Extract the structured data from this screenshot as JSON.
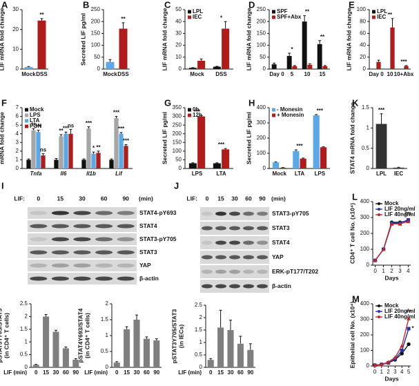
{
  "chart_data": [
    {
      "type": "bar",
      "letter": "A",
      "ylabel": "LIF mRNA fold change",
      "categories": [
        "Mock",
        "DSS"
      ],
      "values": [
        1,
        24.5
      ],
      "errors": [
        0.3,
        1
      ],
      "colors": [
        "#5aa9e6",
        "#b01c1c"
      ],
      "ylim": [
        0,
        30
      ],
      "yticks": [
        0,
        10,
        20,
        30
      ],
      "annotations": [
        {
          "text": "**",
          "category": "DSS"
        }
      ]
    },
    {
      "type": "bar",
      "letter": "B",
      "ylabel": "Secreted LIF pg/ml",
      "categories": [
        "Mock",
        "DSS"
      ],
      "values": [
        30,
        170
      ],
      "errors": [
        10,
        25
      ],
      "colors": [
        "#5aa9e6",
        "#b01c1c"
      ],
      "ylim": [
        0,
        250
      ],
      "yticks": [
        0,
        50,
        100,
        150,
        200,
        250
      ],
      "annotations": [
        {
          "text": "**",
          "category": "DSS"
        }
      ]
    },
    {
      "type": "bar",
      "letter": "C",
      "ylabel": "LIF mRNA fold change",
      "categories": [
        "Mock",
        "DSS"
      ],
      "series": [
        {
          "name": "LPL",
          "color": "#111111",
          "values": [
            1,
            2
          ],
          "errors": [
            0.2,
            0.3
          ]
        },
        {
          "name": "IEC",
          "color": "#b01c1c",
          "values": [
            7,
            34
          ],
          "errors": [
            1.5,
            6
          ]
        }
      ],
      "ylim": [
        0,
        50
      ],
      "yticks": [
        0,
        10,
        20,
        30,
        40,
        50
      ],
      "annotations": [
        {
          "text": "*",
          "category": "DSS"
        }
      ]
    },
    {
      "type": "bar",
      "letter": "D",
      "ylabel": "LIF mRNA fold change",
      "categories": [
        "Day 0",
        "5",
        "10",
        "15"
      ],
      "series": [
        {
          "name": "SPF",
          "color": "#111111",
          "values": [
            20,
            55,
            200,
            105
          ],
          "errors": [
            5,
            12,
            25,
            15
          ]
        },
        {
          "name": "SPF+Abx",
          "color": "#b01c1c",
          "values": [
            null,
            12,
            18,
            12
          ],
          "errors": [
            null,
            3,
            4,
            3
          ]
        }
      ],
      "ylim": [
        0,
        250
      ],
      "yticks": [
        0,
        50,
        100,
        150,
        200,
        250
      ],
      "annotations": [
        {
          "text": "*",
          "category": "5"
        },
        {
          "text": "**",
          "category": "10"
        },
        {
          "text": "**",
          "category": "15"
        }
      ]
    },
    {
      "type": "bar",
      "letter": "E",
      "ylabel": "LIF mRNA fold change",
      "categories": [
        "Day 0",
        "10",
        "10+Abx"
      ],
      "series": [
        {
          "name": "LPL",
          "color": "#111111",
          "values": [
            null,
            null,
            null
          ]
        },
        {
          "name": "IEC",
          "color": "#b01c1c",
          "values": [
            12,
            70,
            5
          ],
          "errors": [
            3,
            15,
            1
          ]
        }
      ],
      "ylim": [
        0,
        100
      ],
      "yticks": [
        0,
        20,
        40,
        60,
        80,
        100
      ],
      "annotations": [
        {
          "text": "**",
          "category": "10"
        },
        {
          "text": "***",
          "category": "10+Abx"
        }
      ]
    },
    {
      "type": "bar",
      "letter": "F",
      "ylabel": "mRNA fold change",
      "italic_categories": true,
      "categories": [
        "Tnfa",
        "Il6",
        "Il1b",
        "Lif"
      ],
      "series": [
        {
          "name": "Mock",
          "color": "#111111",
          "values": [
            1,
            1,
            1,
            1
          ],
          "errors": [
            0.1,
            0.15,
            0.1,
            0.1
          ]
        },
        {
          "name": "LPS",
          "color": "#a6a6a6",
          "values": [
            4.4,
            3.7,
            4.6,
            5.8
          ],
          "errors": [
            0.2,
            0.2,
            0.2,
            0.2
          ]
        },
        {
          "name": "LTA",
          "color": "#5aa9e6",
          "values": [
            4.2,
            4,
            1.7,
            4
          ],
          "errors": [
            0.2,
            0.2,
            0.2,
            0.15
          ]
        },
        {
          "name": "PGN",
          "color": "#b01c1c",
          "values": [
            1.5,
            4,
            1.8,
            2.6
          ],
          "errors": [
            0.2,
            0.5,
            0.2,
            0.15
          ]
        }
      ],
      "ylim": [
        0,
        7
      ],
      "yticks": [
        0,
        1,
        2,
        3,
        4,
        5,
        6,
        7
      ],
      "annotations": [
        {
          "text": "**",
          "category": "Tnfa",
          "series": "LPS"
        },
        {
          "text": "***",
          "category": "Tnfa",
          "series": "LTA"
        },
        {
          "text": "ns",
          "category": "Tnfa",
          "series": "PGN"
        },
        {
          "text": "**",
          "category": "Il6",
          "series": "LPS"
        },
        {
          "text": "***",
          "category": "Il6",
          "series": "LTA"
        },
        {
          "text": "ns",
          "category": "Il6",
          "series": "PGN"
        },
        {
          "text": "***",
          "category": "Il1b",
          "series": "LPS"
        },
        {
          "text": "*",
          "category": "Il1b",
          "series": "LTA"
        },
        {
          "text": "**",
          "category": "Il1b",
          "series": "PGN"
        },
        {
          "text": "***",
          "category": "Lif",
          "series": "LPS"
        },
        {
          "text": "***",
          "category": "Lif",
          "series": "LTA"
        },
        {
          "text": "***",
          "category": "Lif",
          "series": "PGN"
        }
      ]
    },
    {
      "type": "bar",
      "letter": "G",
      "ylabel": "Secreted LIF pg/ml",
      "categories": [
        "LPS",
        "LTA"
      ],
      "series": [
        {
          "name": "0h",
          "color": "#111111",
          "values": [
            30,
            30
          ],
          "errors": [
            3,
            3
          ]
        },
        {
          "name": "12h",
          "color": "#b01c1c",
          "values": [
            300,
            110
          ],
          "errors": [
            5,
            5
          ]
        }
      ],
      "ylim": [
        0,
        350
      ],
      "yticks": [
        0,
        50,
        100,
        150,
        200,
        250,
        300,
        350
      ],
      "annotations": [
        {
          "text": "***",
          "category": "LPS"
        },
        {
          "text": "***",
          "category": "LTA"
        }
      ]
    },
    {
      "type": "bar",
      "letter": "H",
      "ylabel": "Secreted LIF pg/ml",
      "categories": [
        "Mock",
        "LTA",
        "LPS"
      ],
      "series": [
        {
          "name": "- Monesin",
          "color": "#5aa9e6",
          "values": [
            40,
            115,
            350
          ],
          "errors": [
            4,
            8,
            5
          ]
        },
        {
          "name": "+ Monesin",
          "color": "#b01c1c",
          "values": [
            5,
            65,
            140
          ],
          "errors": [
            1,
            4,
            4
          ]
        }
      ],
      "ylim": [
        0,
        400
      ],
      "yticks": [
        0,
        100,
        200,
        300,
        400
      ],
      "annotations": [
        {
          "text": "***",
          "category": "LTA"
        },
        {
          "text": "***",
          "category": "LPS"
        }
      ]
    },
    {
      "type": "bar",
      "letter": "K",
      "ylabel": "STAT4 mRNA fold change",
      "categories": [
        "LPL",
        "IEC"
      ],
      "values": [
        1.1,
        0.02
      ],
      "errors": [
        0.25,
        0.01
      ],
      "colors": [
        "#333333",
        "#333333"
      ],
      "ylim": [
        0,
        1.5
      ],
      "yticks": [
        0,
        0.5,
        1,
        1.5
      ],
      "annotations": [
        {
          "text": "***",
          "category": "LPL"
        }
      ]
    },
    {
      "type": "line",
      "letter": "L",
      "ylabel": "CD4⁺ T cell No. (x10⁴)",
      "xlabel": "Days",
      "x": [
        0,
        1,
        2,
        3,
        4
      ],
      "series": [
        {
          "name": "Mock",
          "color": "#111111",
          "marker": "circle",
          "values": [
            30,
            100,
            270,
            270,
            280
          ]
        },
        {
          "name": "LIF 20ng/ml",
          "color": "#2233aa",
          "marker": "square",
          "values": [
            30,
            100,
            265,
            265,
            285
          ]
        },
        {
          "name": "LIF 40ng/ml",
          "color": "#c0282d",
          "marker": "triangle",
          "values": [
            30,
            100,
            260,
            260,
            275
          ]
        }
      ],
      "xlim": [
        -0.3,
        4.3
      ],
      "xticks": [
        0,
        1,
        2,
        3,
        4
      ],
      "ylim": [
        0,
        400
      ],
      "yticks": [
        0,
        100,
        200,
        300,
        400
      ],
      "annotations": [
        {
          "text": "ns",
          "x": 4,
          "series": "LIF 20ng/ml"
        }
      ]
    },
    {
      "type": "bar",
      "ylabel": [
        "pSTAT3Y705/STAT3",
        "(in CD4⁺ T cells)"
      ],
      "xlabel": "LIF (min)",
      "categories": [
        "0",
        "15",
        "30",
        "60",
        "90"
      ],
      "values": [
        0.1,
        2,
        1.4,
        0.75,
        0.3
      ],
      "errors": [
        0.02,
        0.08,
        0.06,
        0.05,
        0.04
      ],
      "colors": [
        "#7f7f7f",
        "#7f7f7f",
        "#7f7f7f",
        "#7f7f7f",
        "#7f7f7f"
      ],
      "ylim": [
        0,
        2.5
      ],
      "yticks": [
        0,
        0.5,
        1,
        1.5,
        2,
        2.5
      ]
    },
    {
      "type": "bar",
      "ylabel": [
        "pSTAT4Y693/STAT4",
        "(in CD4⁺ T cells)"
      ],
      "xlabel": "LIF (min)",
      "categories": [
        "0",
        "15",
        "30",
        "60",
        "90"
      ],
      "values": [
        0.15,
        1.2,
        1.5,
        0.9,
        0.85
      ],
      "errors": [
        0.03,
        0.08,
        0.15,
        0.06,
        0.05
      ],
      "colors": [
        "#7f7f7f",
        "#7f7f7f",
        "#7f7f7f",
        "#7f7f7f",
        "#7f7f7f"
      ],
      "ylim": [
        0,
        2
      ],
      "yticks": [
        0,
        0.5,
        1,
        1.5,
        2
      ]
    },
    {
      "type": "bar",
      "ylabel": [
        "pSTAT3Y705/STAT3",
        "(in IECs)"
      ],
      "xlabel": "LIF (min)",
      "categories": [
        "0",
        "15",
        "30",
        "60",
        "90"
      ],
      "values": [
        0.3,
        1.6,
        1.5,
        0.95,
        0.7
      ],
      "errors": [
        0.05,
        0.7,
        0.4,
        0.3,
        0.25
      ],
      "colors": [
        "#7f7f7f",
        "#7f7f7f",
        "#7f7f7f",
        "#7f7f7f",
        "#7f7f7f"
      ],
      "ylim": [
        0,
        2.5
      ],
      "yticks": [
        0,
        0.5,
        1,
        1.5,
        2,
        2.5
      ]
    },
    {
      "type": "line",
      "letter": "M",
      "ylabel": "Epithelial cell No. (x10⁴)",
      "xlabel": "Days",
      "x": [
        0,
        1,
        2,
        3,
        4,
        5
      ],
      "series": [
        {
          "name": "Mock",
          "color": "#111111",
          "marker": "circle",
          "values": [
            5,
            10,
            20,
            40,
            80,
            140
          ]
        },
        {
          "name": "LIF 20ng/ml",
          "color": "#2233aa",
          "marker": "square",
          "values": [
            5,
            10,
            20,
            45,
            100,
            240
          ]
        },
        {
          "name": "LIF 40ng/ml",
          "color": "#c0282d",
          "marker": "triangle",
          "values": [
            5,
            10,
            25,
            55,
            130,
            305
          ]
        }
      ],
      "xlim": [
        -0.3,
        5.3
      ],
      "xticks": [
        0,
        1,
        2,
        3,
        4,
        5
      ],
      "ylim": [
        0,
        400
      ],
      "yticks": [
        0,
        100,
        200,
        300,
        400
      ],
      "annotations": [
        {
          "text": "**",
          "x": 5,
          "series": "LIF 40ng/ml"
        },
        {
          "text": "*",
          "x": 5,
          "series": "LIF 20ng/ml"
        }
      ]
    }
  ],
  "blots": [
    {
      "letter": "I",
      "lif_label": "LIF:",
      "lanes": [
        "0",
        "15",
        "30",
        "60",
        "90"
      ],
      "unit": "(min)",
      "rows": [
        "STAT4-pY693",
        "STAT4",
        "STAT3-pY705",
        "STAT3",
        "YAP",
        "β-actin"
      ]
    },
    {
      "letter": "J",
      "lif_label": "LIF:",
      "lanes": [
        "0",
        "15",
        "30",
        "60",
        "90"
      ],
      "unit": "(min)",
      "rows": [
        "STAT3-pY705",
        "STAT3",
        "STAT4",
        "YAP",
        "ERK-pT177/T202",
        "β-actin"
      ]
    }
  ]
}
